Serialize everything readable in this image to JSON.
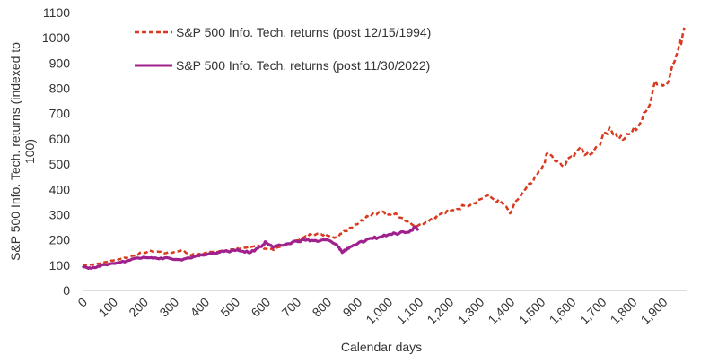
{
  "chart_data": {
    "type": "line",
    "title": "",
    "xlabel": "Calendar days",
    "ylabel": "S&P 500 Info. Tech. returns (indexed to 100)",
    "ylabel_lines": [
      "S&P 500 Info. Tech. returns (indexed to",
      "100)"
    ],
    "ylim": [
      0,
      1100
    ],
    "xlim": [
      0,
      1975
    ],
    "yticks": [
      0,
      100,
      200,
      300,
      400,
      500,
      600,
      700,
      800,
      900,
      1000,
      1100
    ],
    "xticks": [
      0,
      100,
      200,
      300,
      400,
      500,
      600,
      700,
      800,
      900,
      1000,
      1100,
      1200,
      1300,
      1400,
      1500,
      1600,
      1700,
      1800,
      1900
    ],
    "xtick_labels": [
      "0",
      "100",
      "200",
      "300",
      "400",
      "500",
      "600",
      "700",
      "800",
      "900",
      "1,000",
      "1,100",
      "1,200",
      "1,300",
      "1,400",
      "1,500",
      "1,600",
      "1,700",
      "1,800",
      "1,900"
    ],
    "grid": false,
    "legend_position": "top-left inside",
    "series": [
      {
        "name": "S&P 500 Info. Tech. returns (post 12/15/1994)",
        "color": "#d9391f",
        "style": "dashed",
        "x": [
          0,
          25,
          50,
          75,
          100,
          125,
          150,
          175,
          200,
          225,
          250,
          275,
          300,
          325,
          350,
          375,
          400,
          425,
          450,
          475,
          500,
          525,
          550,
          575,
          600,
          625,
          650,
          675,
          700,
          725,
          750,
          775,
          800,
          825,
          850,
          875,
          900,
          925,
          950,
          975,
          1000,
          1025,
          1050,
          1075,
          1100,
          1125,
          1150,
          1175,
          1200,
          1225,
          1250,
          1275,
          1300,
          1325,
          1350,
          1375,
          1400,
          1425,
          1450,
          1475,
          1500,
          1525,
          1550,
          1575,
          1600,
          1625,
          1650,
          1675,
          1700,
          1725,
          1750,
          1775,
          1800,
          1825,
          1850,
          1875,
          1900,
          1925,
          1950,
          1970
        ],
        "values": [
          100,
          102,
          106,
          112,
          118,
          125,
          132,
          142,
          150,
          156,
          153,
          148,
          152,
          160,
          142,
          140,
          148,
          152,
          156,
          160,
          162,
          168,
          172,
          178,
          165,
          160,
          172,
          185,
          198,
          210,
          220,
          225,
          218,
          208,
          225,
          248,
          262,
          285,
          305,
          310,
          300,
          305,
          285,
          265,
          258,
          270,
          290,
          305,
          310,
          322,
          335,
          345,
          360,
          375,
          360,
          345,
          305,
          360,
          400,
          430,
          475,
          545,
          510,
          490,
          530,
          560,
          540,
          555,
          600,
          645,
          610,
          600,
          630,
          660,
          720,
          830,
          810,
          860,
          950,
          1040
        ]
      },
      {
        "name": "S&P 500 Info. Tech. returns (post 11/30/2022)",
        "color": "#a0208e",
        "style": "solid",
        "x": [
          0,
          15,
          30,
          50,
          75,
          100,
          125,
          150,
          175,
          200,
          225,
          250,
          275,
          300,
          325,
          350,
          375,
          400,
          425,
          450,
          475,
          500,
          525,
          550,
          575,
          590,
          600,
          615,
          625,
          650,
          675,
          700,
          725,
          750,
          775,
          800,
          825,
          840,
          850,
          860,
          875,
          900,
          925,
          950,
          975,
          1000,
          1025,
          1050,
          1075,
          1085,
          1100
        ],
        "values": [
          97,
          90,
          88,
          95,
          102,
          107,
          112,
          118,
          128,
          132,
          130,
          125,
          130,
          122,
          120,
          128,
          138,
          140,
          148,
          152,
          155,
          158,
          155,
          150,
          168,
          180,
          192,
          178,
          170,
          178,
          185,
          195,
          200,
          198,
          195,
          200,
          185,
          170,
          150,
          160,
          172,
          185,
          195,
          205,
          212,
          220,
          225,
          232,
          238,
          250,
          245
        ]
      }
    ]
  },
  "legend": {
    "items": [
      {
        "label": "S&P 500 Info. Tech. returns (post 12/15/1994)",
        "color": "#d9391f",
        "style": "dashed"
      },
      {
        "label": "S&P 500 Info. Tech. returns (post 11/30/2022)",
        "color": "#a0208e",
        "style": "solid"
      }
    ]
  },
  "axis_color": "#d0d0d0"
}
